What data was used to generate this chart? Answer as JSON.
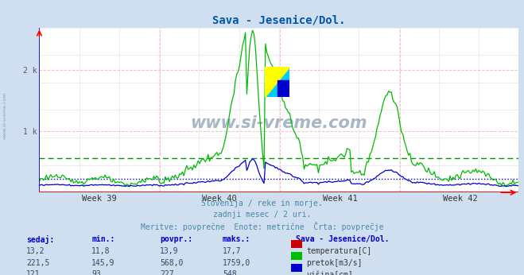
{
  "title": "Sava - Jesenice/Dol.",
  "title_color": "#0055aa",
  "bg_color": "#d0dff0",
  "plot_bg_color": "#ffffff",
  "xlabel_weeks": [
    "Week 39",
    "Week 40",
    "Week 41",
    "Week 42"
  ],
  "ymax": 2700,
  "ymin": 0,
  "n_points": 336,
  "pretok_avg": 568.0,
  "visina_avg": 227,
  "footer_line1": "Slovenija / reke in morje.",
  "footer_line2": "zadnji mesec / 2 uri.",
  "footer_line3": "Meritve: povprečne  Enote: metrične  Črta: povprečje",
  "footer_color": "#4488aa",
  "table_headers": [
    "sedaj:",
    "min.:",
    "povpr.:",
    "maks.:"
  ],
  "table_header_color": "#0000cc",
  "table_rows": [
    {
      "sedaj": "13,2",
      "min": "11,8",
      "povpr": "13,9",
      "maks": "17,7",
      "label": "temperatura[C]",
      "color": "#cc0000"
    },
    {
      "sedaj": "221,5",
      "min": "145,9",
      "povpr": "568,0",
      "maks": "1759,0",
      "label": "pretok[m3/s]",
      "color": "#00bb00"
    },
    {
      "sedaj": "121",
      "min": "93",
      "povpr": "227",
      "maks": "548",
      "label": "višina[cm]",
      "color": "#0000cc"
    }
  ],
  "table_station": "Sava - Jesenice/Dol.",
  "watermark": "www.si-vreme.com",
  "watermark_color": "#99aabb",
  "side_label": "www.si-vreme.com",
  "temp_color": "#cc0000",
  "pretok_color": "#00bb00",
  "visina_color": "#0000cc",
  "avg_line_pretok_color": "#009900",
  "avg_line_visina_color": "#0000cc",
  "axis_color": "#0000cc",
  "grid_major_color": "#ffaaaa",
  "grid_minor_color": "#ddddee",
  "bottom_line_color": "#ff0000",
  "tick_color": "#555577"
}
